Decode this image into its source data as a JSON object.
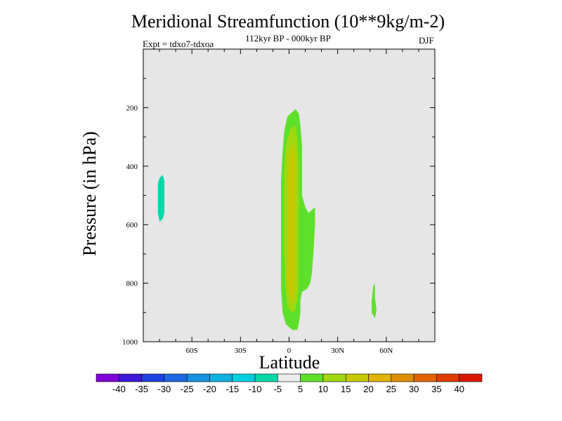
{
  "chart_data": {
    "type": "contour",
    "title": "Meridional Streamfunction (10**9kg/m-2)",
    "subtitle": "112kyr BP - 000kyr BP",
    "left_label": "Expt = tdxo7-tdxoa",
    "right_label": "DJF",
    "xlabel": "Latitude",
    "ylabel": "Pressure (in hPa)",
    "x_ticks": [
      {
        "value": -60,
        "label": "60S"
      },
      {
        "value": -30,
        "label": "30S"
      },
      {
        "value": 0,
        "label": "0"
      },
      {
        "value": 30,
        "label": "30N"
      },
      {
        "value": 60,
        "label": "60N"
      }
    ],
    "xlim": [
      -90,
      90
    ],
    "y_ticks": [
      {
        "value": 200,
        "label": "200"
      },
      {
        "value": 400,
        "label": "400"
      },
      {
        "value": 600,
        "label": "600"
      },
      {
        "value": 800,
        "label": "800"
      },
      {
        "value": 1000,
        "label": "1000"
      }
    ],
    "ylim": [
      1000,
      0
    ],
    "background_color": "#e6e6e6",
    "features": [
      {
        "name": "tropical positive cell (5 to 10)",
        "level": "5 to 10",
        "color": "#5ee02a",
        "outline": [
          [
            2,
            960
          ],
          [
            -2,
            940
          ],
          [
            -4,
            900
          ],
          [
            -5,
            820
          ],
          [
            -5,
            720
          ],
          [
            -5,
            600
          ],
          [
            -5,
            450
          ],
          [
            -4,
            350
          ],
          [
            -3,
            280
          ],
          [
            -1,
            230
          ],
          [
            4,
            205
          ],
          [
            6,
            220
          ],
          [
            7,
            260
          ],
          [
            8,
            330
          ],
          [
            8,
            430
          ],
          [
            8,
            500
          ],
          [
            10,
            540
          ],
          [
            12,
            560
          ],
          [
            14,
            550
          ],
          [
            16,
            540
          ],
          [
            16,
            600
          ],
          [
            15,
            700
          ],
          [
            14,
            770
          ],
          [
            13,
            800
          ],
          [
            11,
            820
          ],
          [
            8,
            830
          ],
          [
            7,
            860
          ],
          [
            7,
            900
          ],
          [
            6,
            940
          ],
          [
            5,
            960
          ]
        ]
      },
      {
        "name": "tropical positive cell (10 to 15)",
        "level": "10 to 15",
        "color": "#9fd710",
        "outline": [
          [
            2,
            900
          ],
          [
            -1,
            880
          ],
          [
            -2,
            820
          ],
          [
            -3,
            700
          ],
          [
            -3,
            550
          ],
          [
            -3,
            420
          ],
          [
            -2,
            330
          ],
          [
            1,
            270
          ],
          [
            4,
            260
          ],
          [
            5,
            300
          ],
          [
            6,
            400
          ],
          [
            6,
            550
          ],
          [
            6,
            700
          ],
          [
            6,
            800
          ],
          [
            5,
            860
          ],
          [
            4,
            890
          ]
        ]
      },
      {
        "name": "tropical positive cell (15 to 20)",
        "level": "15 to 20",
        "color": "#c8c800",
        "outline": [
          [
            2,
            870
          ],
          [
            0,
            840
          ],
          [
            -1,
            760
          ],
          [
            -1,
            620
          ],
          [
            -1,
            470
          ],
          [
            0,
            360
          ],
          [
            2,
            320
          ],
          [
            4,
            360
          ],
          [
            4,
            480
          ],
          [
            4,
            620
          ],
          [
            4,
            760
          ],
          [
            3,
            840
          ]
        ]
      },
      {
        "name": "southern negative cell (-10 to -5)",
        "level": "-10 to -5",
        "color": "#00d8a8",
        "outline": [
          [
            -80,
            440
          ],
          [
            -78,
            430
          ],
          [
            -77,
            450
          ],
          [
            -77,
            500
          ],
          [
            -77,
            560
          ],
          [
            -78,
            580
          ],
          [
            -80,
            590
          ],
          [
            -81,
            560
          ],
          [
            -81,
            500
          ],
          [
            -81,
            460
          ]
        ]
      },
      {
        "name": "northern positive cell (5 to 10)",
        "level": "5 to 10",
        "color": "#5ee02a",
        "outline": [
          [
            52,
            810
          ],
          [
            53,
            800
          ],
          [
            53,
            850
          ],
          [
            54,
            890
          ],
          [
            53,
            920
          ],
          [
            51,
            900
          ],
          [
            51,
            860
          ]
        ]
      }
    ],
    "colorbar": {
      "tick_labels": [
        "-40",
        "-35",
        "-30",
        "-25",
        "-20",
        "-15",
        "-10",
        "-5",
        "5",
        "10",
        "15",
        "20",
        "25",
        "30",
        "35",
        "40"
      ],
      "colors": [
        "#8000d8",
        "#4018d8",
        "#2040e0",
        "#2068e0",
        "#1890e0",
        "#10b0e0",
        "#00d0e0",
        "#00d8a8",
        "#ececec",
        "#5ee02a",
        "#9fd710",
        "#c8c800",
        "#e0b400",
        "#e08c00",
        "#e06400",
        "#e03c00",
        "#d81800"
      ]
    }
  }
}
